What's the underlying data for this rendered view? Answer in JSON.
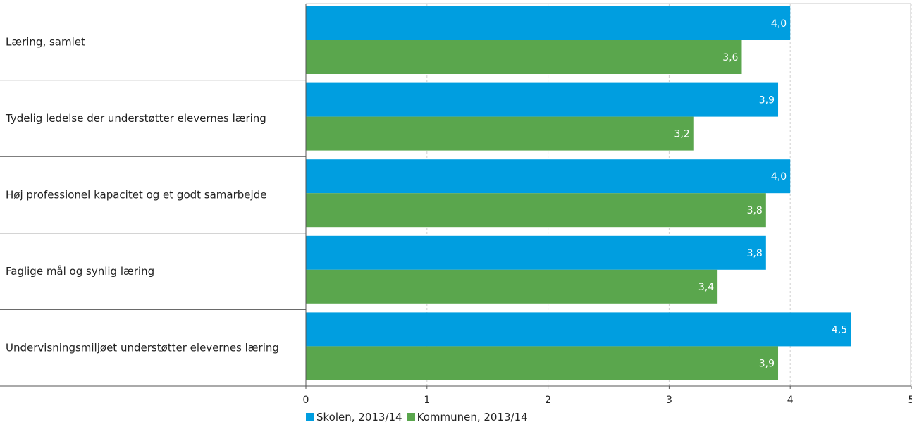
{
  "chart_data": {
    "type": "bar",
    "orientation": "horizontal",
    "categories": [
      "Læring, samlet",
      "Tydelig ledelse der understøtter elevernes læring",
      "Høj professionel kapacitet og et godt samarbejde",
      "Faglige mål og synlig læring",
      "Undervisningsmiljøet understøtter elevernes læring"
    ],
    "series": [
      {
        "name": "Skolen, 2013/14",
        "color": "#009ee0",
        "values": [
          4.0,
          3.9,
          4.0,
          3.8,
          4.5
        ]
      },
      {
        "name": "Kommunen, 2013/14",
        "color": "#5aa64d",
        "values": [
          3.6,
          3.2,
          3.8,
          3.4,
          3.9
        ]
      }
    ],
    "value_labels": [
      [
        "4,0",
        "3,9",
        "4,0",
        "3,8",
        "4,5"
      ],
      [
        "3,6",
        "3,2",
        "3,8",
        "3,4",
        "3,9"
      ]
    ],
    "xlim": [
      0,
      5
    ],
    "x_ticks": [
      "0",
      "1",
      "2",
      "3",
      "4",
      "5"
    ],
    "grid": "vertical dashed",
    "legend_position": "bottom"
  }
}
